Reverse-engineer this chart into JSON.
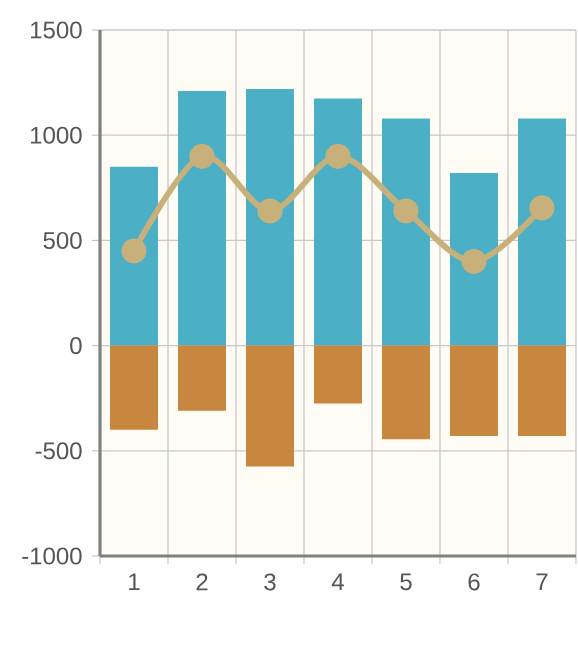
{
  "chart_data": {
    "type": "bar",
    "stacked": true,
    "grid": true,
    "categories": [
      "1",
      "2",
      "3",
      "4",
      "5",
      "6",
      "7"
    ],
    "ylim": [
      -1000,
      1500
    ],
    "yticks": [
      -1000,
      -500,
      0,
      500,
      1000,
      1500
    ],
    "series": [
      {
        "color": "#4bafc6",
        "values": [
          850,
          1210,
          1220,
          1175,
          1080,
          820,
          1080
        ]
      },
      {
        "color": "#c8873f",
        "values": [
          -400,
          -310,
          -575,
          -275,
          -445,
          -430,
          -430
        ]
      },
      {
        "type": "line",
        "color": "#c8b07a",
        "marker": "circle",
        "values": [
          450,
          900,
          640,
          900,
          640,
          400,
          655
        ]
      }
    ]
  }
}
